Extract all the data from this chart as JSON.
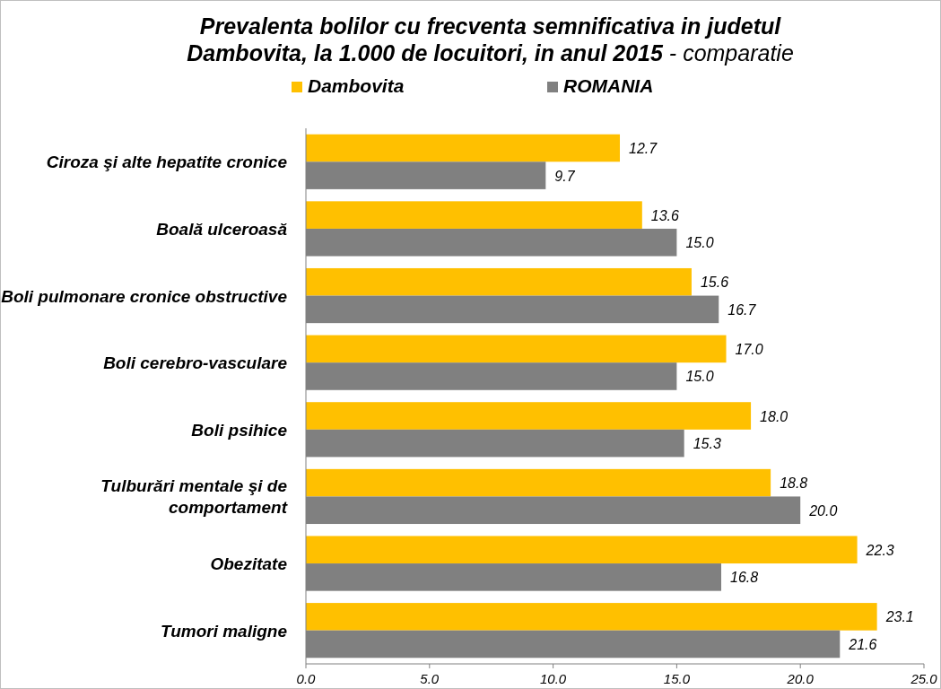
{
  "chart_data": {
    "type": "bar",
    "orientation": "horizontal",
    "title": "Prevalenta bolilor cu frecventa semnificativa in judetul Dambovita, la 1.000 de locuitori, in anul 2015",
    "subtitle": "- comparatie",
    "categories": [
      "Ciroza şi alte hepatite cronice",
      "Boală ulceroasă",
      "Boli pulmonare cronice obstructive",
      "Boli cerebro-vasculare",
      "Boli psihice",
      "Tulburări mentale şi de comportament",
      "Obezitate",
      "Tumori maligne"
    ],
    "series": [
      {
        "name": "Dambovita",
        "color": "#ffc000",
        "values": [
          12.7,
          13.6,
          15.6,
          17.0,
          18.0,
          18.8,
          22.3,
          23.1
        ],
        "value_labels": [
          "12.7",
          "13.6",
          "15.6",
          "17.0",
          "18.0",
          "18.8",
          "22.3",
          "23.1"
        ]
      },
      {
        "name": "ROMANIA",
        "color": "#808080",
        "values": [
          9.7,
          15.0,
          16.7,
          15.0,
          15.3,
          20.0,
          16.8,
          21.6
        ],
        "value_labels": [
          "9.7",
          "15.0",
          "16.7",
          "15.0",
          "15.3",
          "20.0",
          "16.8",
          "21.6"
        ]
      }
    ],
    "xlim": [
      0,
      25
    ],
    "xticks": [
      {
        "value": 0,
        "label": "0.0"
      },
      {
        "value": 5,
        "label": "5.0"
      },
      {
        "value": 10,
        "label": "10.0"
      },
      {
        "value": 15,
        "label": "15.0"
      },
      {
        "value": 20,
        "label": "20.0"
      },
      {
        "value": 25,
        "label": "25.0"
      }
    ],
    "legend": "top",
    "grid": false
  }
}
